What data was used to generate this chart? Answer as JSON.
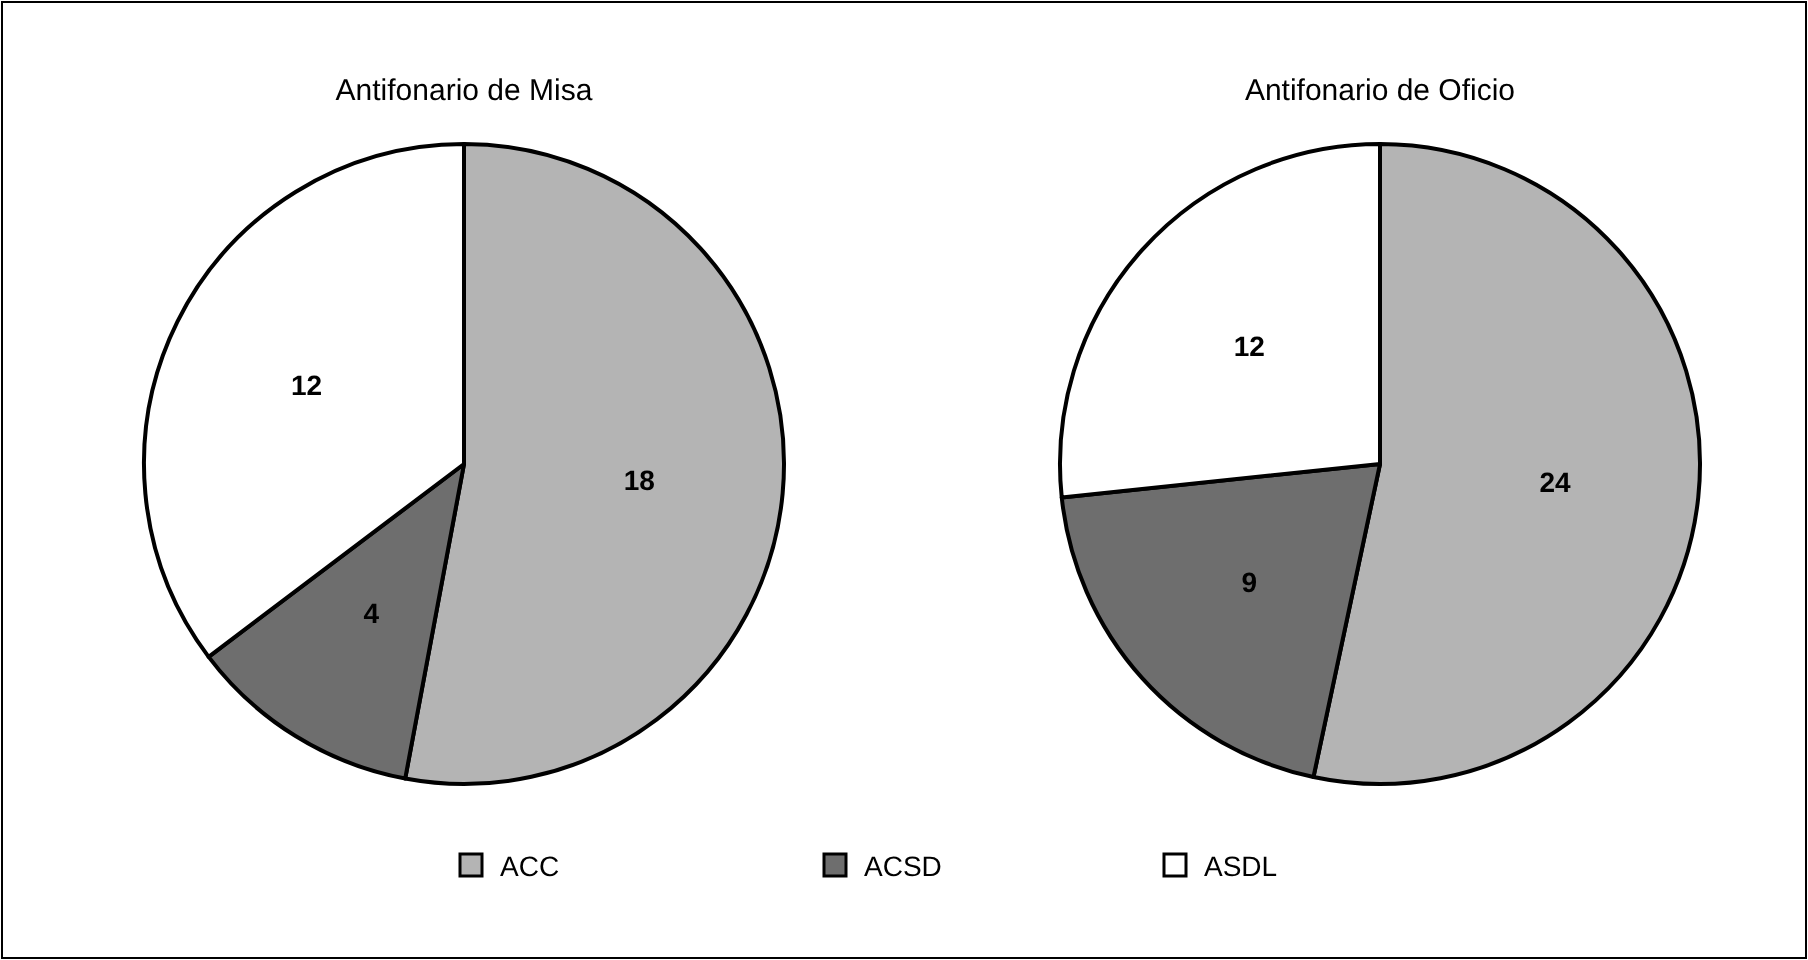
{
  "chart_data": [
    {
      "type": "pie",
      "title": "Antifonario de Misa",
      "categories": [
        "ACC",
        "ACSD",
        "ASDL"
      ],
      "values": [
        18,
        4,
        12
      ],
      "colors": [
        "#b4b4b4",
        "#6e6e6e",
        "#ffffff"
      ],
      "data_labels": true,
      "legend": "bottom"
    },
    {
      "type": "pie",
      "title": "Antifonario de Oficio",
      "categories": [
        null,
        null,
        null
      ],
      "values": [
        24,
        9,
        12
      ],
      "colors": [
        "#b4b4b4",
        "#6e6e6e",
        "#ffffff"
      ],
      "data_labels": true
    }
  ]
}
